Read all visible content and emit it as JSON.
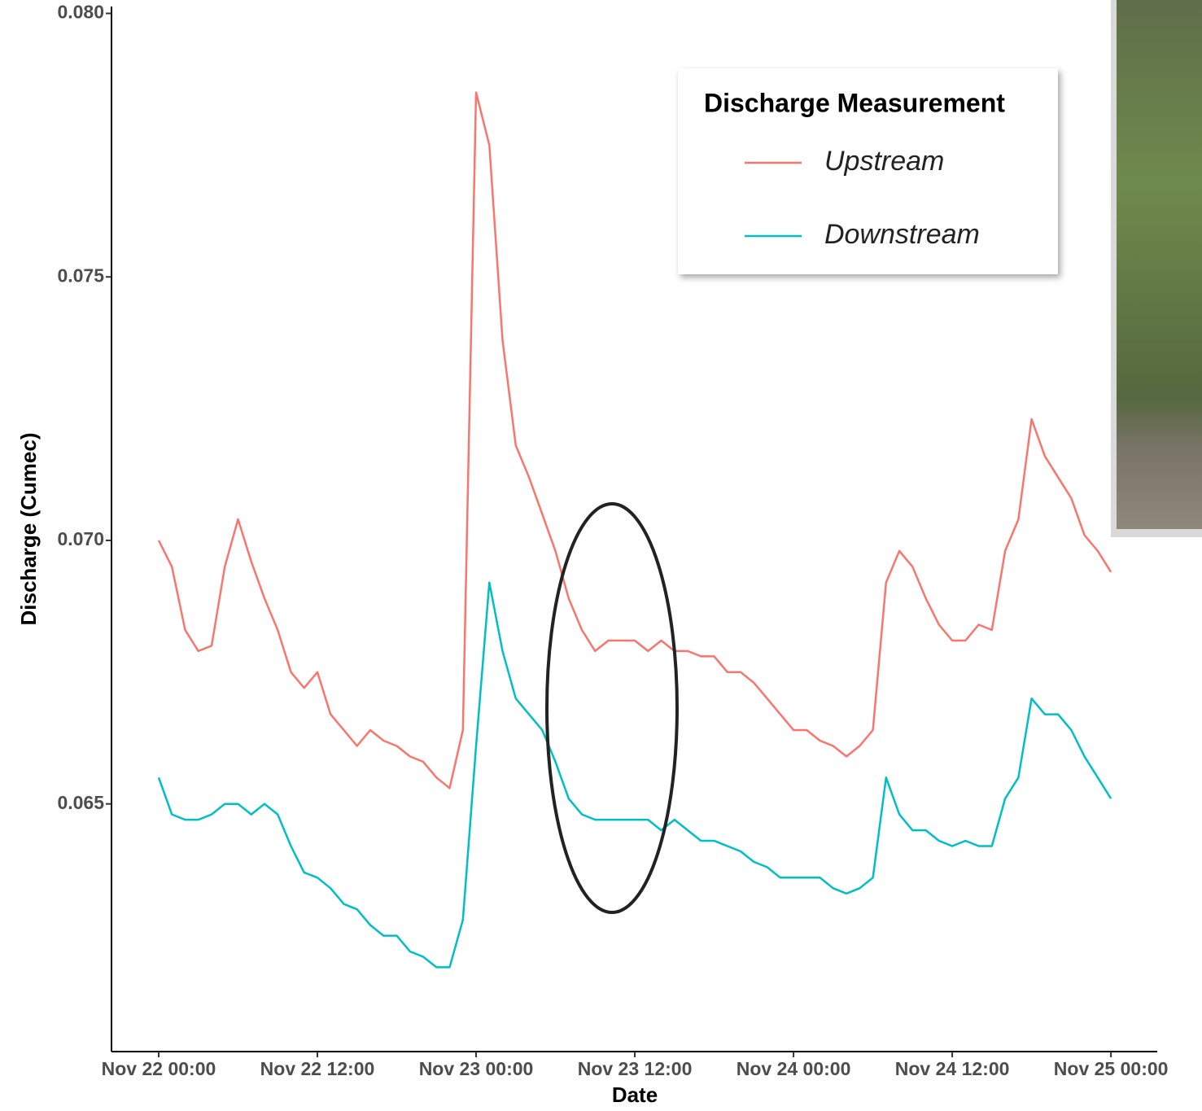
{
  "chart_data": {
    "type": "line",
    "x_label": "Date",
    "y_label": "Discharge (Cumec)",
    "x": [
      "Nov 22 00:00",
      "Nov 22 01:00",
      "Nov 22 02:00",
      "Nov 22 03:00",
      "Nov 22 04:00",
      "Nov 22 05:00",
      "Nov 22 06:00",
      "Nov 22 07:00",
      "Nov 22 08:00",
      "Nov 22 09:00",
      "Nov 22 10:00",
      "Nov 22 11:00",
      "Nov 22 12:00",
      "Nov 22 13:00",
      "Nov 22 14:00",
      "Nov 22 15:00",
      "Nov 22 16:00",
      "Nov 22 17:00",
      "Nov 22 18:00",
      "Nov 22 19:00",
      "Nov 22 20:00",
      "Nov 22 21:00",
      "Nov 22 22:00",
      "Nov 22 23:00",
      "Nov 23 00:00",
      "Nov 23 01:00",
      "Nov 23 02:00",
      "Nov 23 03:00",
      "Nov 23 04:00",
      "Nov 23 05:00",
      "Nov 23 06:00",
      "Nov 23 07:00",
      "Nov 23 08:00",
      "Nov 23 09:00",
      "Nov 23 10:00",
      "Nov 23 11:00",
      "Nov 23 12:00",
      "Nov 23 13:00",
      "Nov 23 14:00",
      "Nov 23 15:00",
      "Nov 23 16:00",
      "Nov 23 17:00",
      "Nov 23 18:00",
      "Nov 23 19:00",
      "Nov 23 20:00",
      "Nov 23 21:00",
      "Nov 23 22:00",
      "Nov 23 23:00",
      "Nov 24 00:00",
      "Nov 24 01:00",
      "Nov 24 02:00",
      "Nov 24 03:00",
      "Nov 24 04:00",
      "Nov 24 05:00",
      "Nov 24 06:00",
      "Nov 24 07:00",
      "Nov 24 08:00",
      "Nov 24 09:00",
      "Nov 24 10:00",
      "Nov 24 11:00",
      "Nov 24 12:00",
      "Nov 24 13:00",
      "Nov 24 14:00",
      "Nov 24 15:00",
      "Nov 24 16:00",
      "Nov 24 17:00",
      "Nov 24 18:00",
      "Nov 24 19:00",
      "Nov 24 20:00",
      "Nov 24 21:00",
      "Nov 24 22:00",
      "Nov 24 23:00",
      "Nov 25 00:00"
    ],
    "series": [
      {
        "name": "Upstream",
        "color": "#F8766D",
        "values": [
          0.07,
          0.0695,
          0.0683,
          0.0679,
          0.068,
          0.0695,
          0.0704,
          0.0696,
          0.0689,
          0.0683,
          0.0675,
          0.0672,
          0.0675,
          0.0667,
          0.0664,
          0.0661,
          0.0664,
          0.0662,
          0.0661,
          0.0659,
          0.0658,
          0.0655,
          0.0653,
          0.0664,
          0.0785,
          0.0775,
          0.0738,
          0.0718,
          0.0712,
          0.0705,
          0.0698,
          0.0689,
          0.0683,
          0.0679,
          0.0681,
          0.0681,
          0.0681,
          0.0679,
          0.0681,
          0.0679,
          0.0679,
          0.0678,
          0.0678,
          0.0675,
          0.0675,
          0.0673,
          0.067,
          0.0667,
          0.0664,
          0.0664,
          0.0662,
          0.0661,
          0.0659,
          0.0661,
          0.0664,
          0.0692,
          0.0698,
          0.0695,
          0.0689,
          0.0684,
          0.0681,
          0.0681,
          0.0684,
          0.0683,
          0.0698,
          0.0704,
          0.0723,
          0.0716,
          0.0712,
          0.0708,
          0.0701,
          0.0698,
          0.0694
        ]
      },
      {
        "name": "Downstream",
        "color": "#00BFC4",
        "values": [
          0.0655,
          0.0648,
          0.0647,
          0.0647,
          0.0648,
          0.065,
          0.065,
          0.0648,
          0.065,
          0.0648,
          0.0642,
          0.0637,
          0.0636,
          0.0634,
          0.0631,
          0.063,
          0.0627,
          0.0625,
          0.0625,
          0.0622,
          0.0621,
          0.0619,
          0.0619,
          0.0628,
          0.0661,
          0.0692,
          0.0679,
          0.067,
          0.0667,
          0.0664,
          0.0658,
          0.0651,
          0.0648,
          0.0647,
          0.0647,
          0.0647,
          0.0647,
          0.0647,
          0.0645,
          0.0647,
          0.0645,
          0.0643,
          0.0643,
          0.0642,
          0.0641,
          0.0639,
          0.0638,
          0.0636,
          0.0636,
          0.0636,
          0.0636,
          0.0634,
          0.0633,
          0.0634,
          0.0636,
          0.0655,
          0.0648,
          0.0645,
          0.0645,
          0.0643,
          0.0642,
          0.0643,
          0.0642,
          0.0642,
          0.0651,
          0.0655,
          0.067,
          0.0667,
          0.0667,
          0.0664,
          0.0659,
          0.0655,
          0.0651
        ]
      }
    ],
    "xlim": [
      "Nov 21 20:26",
      "Nov 25 03:30"
    ],
    "xticks": [
      "Nov 22 00:00",
      "Nov 22 12:00",
      "Nov 23 00:00",
      "Nov 23 12:00",
      "Nov 24 00:00",
      "Nov 24 12:00",
      "Nov 25 00:00"
    ],
    "ylim": [
      0.0603,
      0.0801
    ],
    "yticks": [
      {
        "value": 0.065,
        "label": "0.065"
      },
      {
        "value": 0.07,
        "label": "0.070"
      },
      {
        "value": 0.075,
        "label": "0.075"
      },
      {
        "value": 0.08,
        "label": "0.080"
      }
    ],
    "grid": false,
    "legend": {
      "title": "Discharge Measurement",
      "position": "top-right"
    }
  }
}
